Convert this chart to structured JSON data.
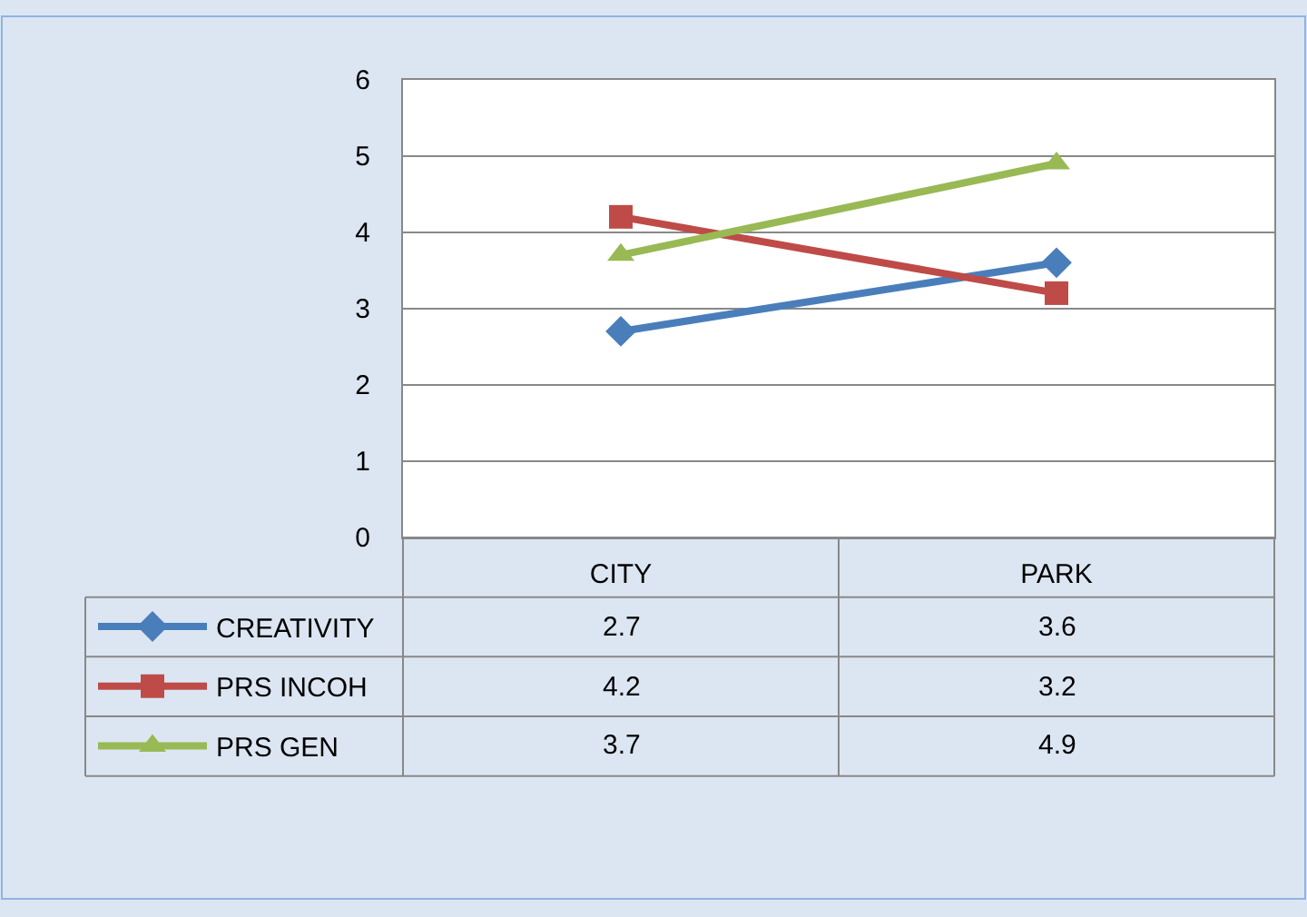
{
  "chart_data": {
    "type": "line",
    "categories": [
      "CITY",
      "PARK"
    ],
    "series": [
      {
        "name": "CREATIVITY",
        "color": "#4a7ebb",
        "marker": "diamond",
        "values": [
          2.7,
          3.6
        ]
      },
      {
        "name": "PRS INCOH",
        "color": "#be4b48",
        "marker": "square",
        "values": [
          4.2,
          3.2
        ]
      },
      {
        "name": "PRS GEN",
        "color": "#98b954",
        "marker": "triangle",
        "values": [
          3.7,
          4.9
        ]
      }
    ],
    "ylim": [
      0,
      6
    ],
    "yticks": [
      0,
      1,
      2,
      3,
      4,
      5,
      6
    ],
    "grid": "y",
    "legend": "bottom left",
    "data_labels": true
  }
}
